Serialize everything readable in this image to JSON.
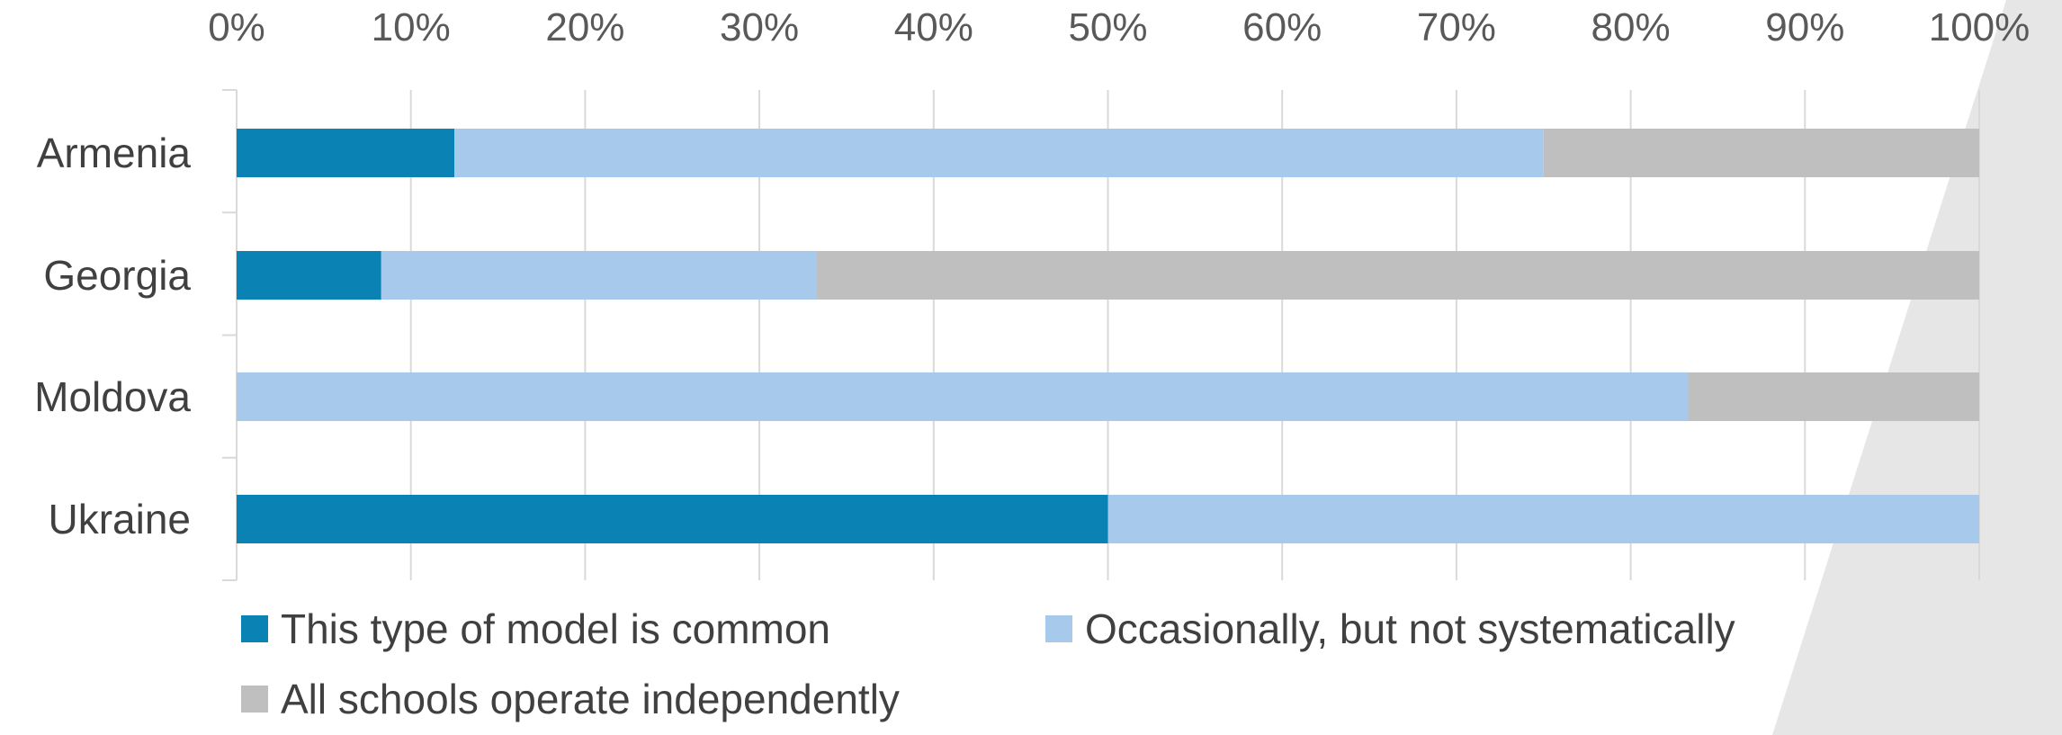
{
  "chart_data": {
    "type": "bar",
    "orientation": "horizontal",
    "stacked": "percent",
    "categories": [
      "Armenia",
      "Georgia",
      "Moldova",
      "Ukraine"
    ],
    "series": [
      {
        "name": "This type of model is common",
        "color": "#0b82b4",
        "values": [
          12.5,
          8.3,
          0,
          50
        ]
      },
      {
        "name": "Occasionally, but not systematically",
        "color": "#a6c9ec",
        "values": [
          62.5,
          25,
          83.3,
          50
        ]
      },
      {
        "name": "All schools operate independently",
        "color": "#bfbfbf",
        "values": [
          25,
          66.7,
          16.7,
          0
        ]
      }
    ],
    "xlim": [
      0,
      100
    ],
    "x_ticks": [
      "0%",
      "10%",
      "20%",
      "30%",
      "40%",
      "50%",
      "60%",
      "70%",
      "80%",
      "90%",
      "100%"
    ],
    "x_axis_position": "top",
    "gridlines": true,
    "legend_position": "bottom",
    "title": "",
    "xlabel": "",
    "ylabel": ""
  },
  "decoration": {
    "background_shape_color": "#e6e6e6"
  }
}
